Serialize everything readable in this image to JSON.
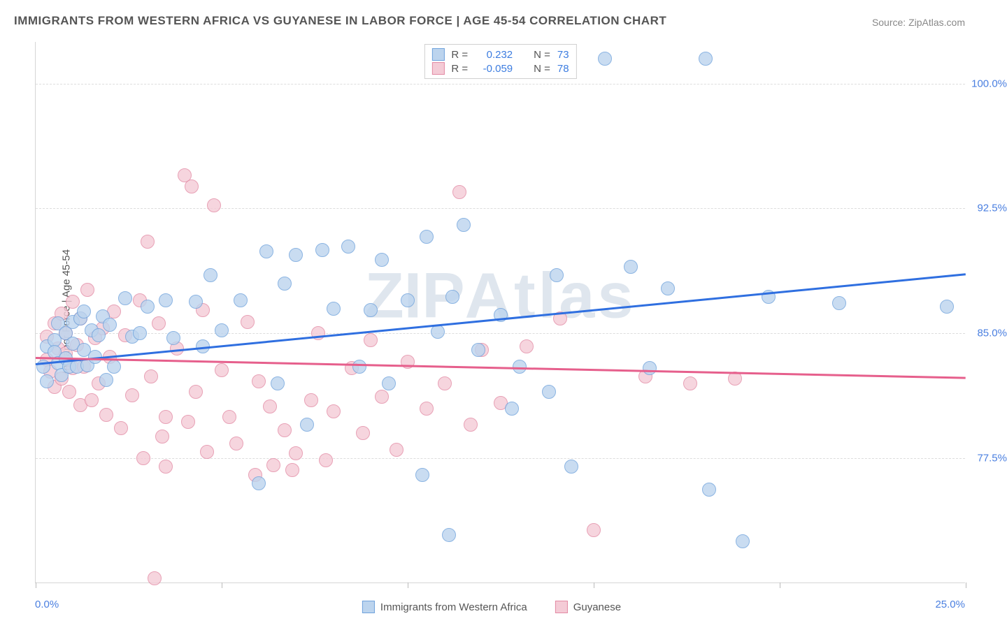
{
  "title": "IMMIGRANTS FROM WESTERN AFRICA VS GUYANESE IN LABOR FORCE | AGE 45-54 CORRELATION CHART",
  "source": "Source: ZipAtlas.com",
  "ylabel": "In Labor Force | Age 45-54",
  "watermark": {
    "left": "ZIP",
    "right": "Atlas"
  },
  "chart": {
    "type": "scatter_with_trend",
    "background_color": "#ffffff",
    "grid_color": "#dddddd",
    "axis_color": "#d6d6d6",
    "label_fontsize": 15,
    "title_fontsize": 17,
    "title_color": "#555555",
    "tick_label_color": "#4a7fe0",
    "x": {
      "min": 0.0,
      "max": 25.0,
      "tick_step": 5.0,
      "label_min": "0.0%",
      "label_max": "25.0%"
    },
    "y": {
      "min": 70.0,
      "max": 102.5,
      "ticks": [
        77.5,
        85.0,
        92.5,
        100.0
      ],
      "tick_labels": [
        "77.5%",
        "85.0%",
        "92.5%",
        "100.0%"
      ]
    },
    "series": [
      {
        "label": "Immigrants from Western Africa",
        "fill_color": "#bcd4ee",
        "stroke_color": "#6fa2dc",
        "swatch_fill": "#bcd4ee",
        "swatch_border": "#6fa2dc",
        "marker_radius": 10,
        "marker_opacity": 0.8,
        "trend": {
          "x1": 0.0,
          "y1": 83.2,
          "x2": 25.0,
          "y2": 88.6,
          "color": "#2f6fe0",
          "width": 2.5
        },
        "stats": {
          "R_label": "R =",
          "R": "0.232",
          "N_label": "N =",
          "N": "73"
        },
        "points": [
          [
            0.2,
            83.0
          ],
          [
            0.3,
            84.2
          ],
          [
            0.3,
            82.1
          ],
          [
            0.5,
            84.6
          ],
          [
            0.5,
            83.9
          ],
          [
            0.6,
            83.2
          ],
          [
            0.6,
            85.6
          ],
          [
            0.7,
            82.5
          ],
          [
            0.8,
            85.0
          ],
          [
            0.8,
            83.5
          ],
          [
            0.9,
            83.0
          ],
          [
            1.0,
            84.4
          ],
          [
            1.0,
            85.7
          ],
          [
            1.1,
            83.0
          ],
          [
            1.2,
            85.9
          ],
          [
            1.3,
            84.0
          ],
          [
            1.3,
            86.3
          ],
          [
            1.4,
            83.1
          ],
          [
            1.5,
            85.2
          ],
          [
            1.6,
            83.6
          ],
          [
            1.7,
            84.9
          ],
          [
            1.8,
            86.0
          ],
          [
            1.9,
            82.2
          ],
          [
            2.0,
            85.5
          ],
          [
            2.1,
            83.0
          ],
          [
            2.4,
            87.1
          ],
          [
            2.6,
            84.8
          ],
          [
            2.8,
            85.0
          ],
          [
            3.0,
            86.6
          ],
          [
            3.5,
            87.0
          ],
          [
            3.7,
            84.7
          ],
          [
            4.3,
            86.9
          ],
          [
            4.5,
            84.2
          ],
          [
            4.7,
            88.5
          ],
          [
            5.0,
            85.2
          ],
          [
            5.5,
            87.0
          ],
          [
            6.0,
            76.0
          ],
          [
            6.2,
            89.9
          ],
          [
            6.5,
            82.0
          ],
          [
            6.7,
            88.0
          ],
          [
            7.0,
            89.7
          ],
          [
            7.3,
            79.5
          ],
          [
            7.7,
            90.0
          ],
          [
            8.0,
            86.5
          ],
          [
            8.4,
            90.2
          ],
          [
            8.7,
            83.0
          ],
          [
            9.0,
            86.4
          ],
          [
            9.3,
            89.4
          ],
          [
            9.5,
            82.0
          ],
          [
            10.0,
            87.0
          ],
          [
            10.4,
            76.5
          ],
          [
            10.5,
            90.8
          ],
          [
            10.8,
            85.1
          ],
          [
            11.1,
            72.9
          ],
          [
            11.2,
            87.2
          ],
          [
            11.5,
            91.5
          ],
          [
            11.9,
            84.0
          ],
          [
            12.5,
            86.1
          ],
          [
            12.8,
            80.5
          ],
          [
            13.0,
            83.0
          ],
          [
            13.8,
            81.5
          ],
          [
            14.0,
            88.5
          ],
          [
            14.4,
            77.0
          ],
          [
            15.3,
            101.5
          ],
          [
            16.0,
            89.0
          ],
          [
            16.5,
            82.9
          ],
          [
            17.0,
            87.7
          ],
          [
            18.0,
            101.5
          ],
          [
            18.1,
            75.6
          ],
          [
            19.0,
            72.5
          ],
          [
            19.7,
            87.2
          ],
          [
            21.6,
            86.8
          ],
          [
            24.5,
            86.6
          ]
        ]
      },
      {
        "label": "Guyanese",
        "fill_color": "#f4cbd6",
        "stroke_color": "#e38aa4",
        "swatch_fill": "#f4cbd6",
        "swatch_border": "#e38aa4",
        "marker_radius": 10,
        "marker_opacity": 0.8,
        "trend": {
          "x1": 0.0,
          "y1": 83.6,
          "x2": 25.0,
          "y2": 82.4,
          "color": "#e65f8c",
          "width": 2.5
        },
        "stats": {
          "R_label": "R =",
          "R": "-0.059",
          "N_label": "N =",
          "N": "78"
        },
        "points": [
          [
            0.3,
            83.4
          ],
          [
            0.3,
            84.8
          ],
          [
            0.4,
            82.7
          ],
          [
            0.5,
            85.6
          ],
          [
            0.5,
            81.8
          ],
          [
            0.6,
            84.1
          ],
          [
            0.7,
            86.2
          ],
          [
            0.7,
            82.3
          ],
          [
            0.8,
            83.8
          ],
          [
            0.8,
            85.0
          ],
          [
            0.9,
            81.5
          ],
          [
            1.0,
            86.9
          ],
          [
            1.0,
            82.9
          ],
          [
            1.1,
            84.3
          ],
          [
            1.2,
            80.7
          ],
          [
            1.2,
            85.9
          ],
          [
            1.3,
            83.0
          ],
          [
            1.4,
            87.6
          ],
          [
            1.5,
            81.0
          ],
          [
            1.6,
            84.7
          ],
          [
            1.7,
            82.0
          ],
          [
            1.8,
            85.3
          ],
          [
            1.9,
            80.1
          ],
          [
            2.0,
            83.6
          ],
          [
            2.1,
            86.3
          ],
          [
            2.3,
            79.3
          ],
          [
            2.4,
            84.9
          ],
          [
            2.6,
            81.3
          ],
          [
            2.8,
            87.0
          ],
          [
            2.9,
            77.5
          ],
          [
            3.0,
            90.5
          ],
          [
            3.1,
            82.4
          ],
          [
            3.3,
            85.6
          ],
          [
            3.4,
            78.8
          ],
          [
            3.5,
            80.0
          ],
          [
            3.8,
            84.1
          ],
          [
            4.0,
            94.5
          ],
          [
            4.1,
            79.7
          ],
          [
            4.2,
            93.8
          ],
          [
            4.3,
            81.5
          ],
          [
            4.5,
            86.4
          ],
          [
            4.6,
            77.9
          ],
          [
            4.8,
            92.7
          ],
          [
            5.0,
            82.8
          ],
          [
            5.2,
            80.0
          ],
          [
            5.4,
            78.4
          ],
          [
            5.7,
            85.7
          ],
          [
            5.9,
            76.5
          ],
          [
            6.0,
            82.1
          ],
          [
            6.3,
            80.6
          ],
          [
            6.4,
            77.1
          ],
          [
            6.7,
            79.2
          ],
          [
            6.9,
            76.8
          ],
          [
            7.0,
            77.8
          ],
          [
            7.4,
            81.0
          ],
          [
            7.6,
            85.0
          ],
          [
            7.8,
            77.4
          ],
          [
            8.0,
            80.3
          ],
          [
            8.5,
            82.9
          ],
          [
            8.8,
            79.0
          ],
          [
            9.0,
            84.6
          ],
          [
            9.3,
            81.2
          ],
          [
            9.7,
            78.0
          ],
          [
            10.0,
            83.3
          ],
          [
            10.5,
            80.5
          ],
          [
            11.0,
            82.0
          ],
          [
            11.4,
            93.5
          ],
          [
            11.7,
            79.5
          ],
          [
            12.0,
            84.0
          ],
          [
            12.5,
            80.8
          ],
          [
            13.2,
            84.2
          ],
          [
            14.1,
            85.9
          ],
          [
            15.0,
            73.2
          ],
          [
            16.4,
            82.4
          ],
          [
            17.6,
            82.0
          ],
          [
            18.8,
            82.3
          ],
          [
            3.2,
            70.3
          ],
          [
            3.5,
            77.0
          ]
        ]
      }
    ],
    "bottom_legend": [
      {
        "label": "Immigrants from Western Africa",
        "fill": "#bcd4ee",
        "border": "#6fa2dc"
      },
      {
        "label": "Guyanese",
        "fill": "#f4cbd6",
        "border": "#e38aa4"
      }
    ]
  }
}
